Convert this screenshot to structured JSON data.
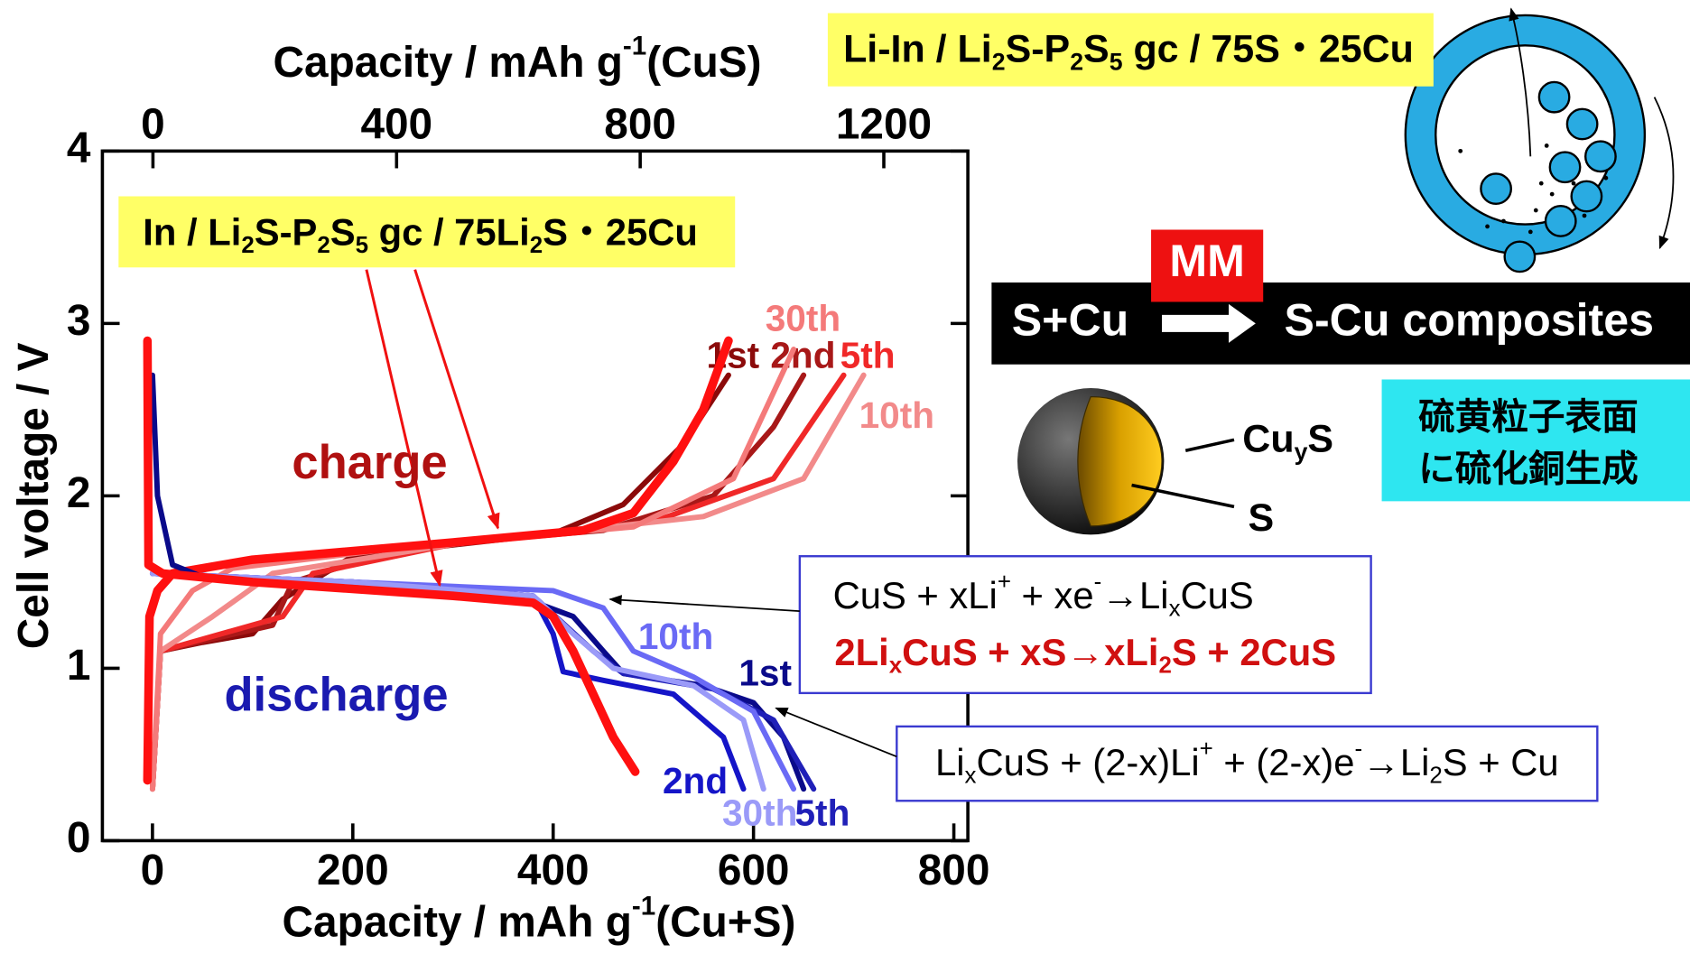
{
  "chart_data": {
    "type": "line",
    "xlabel": [
      "Capacity / mAh g",
      {
        "sup": "-1"
      },
      "(Cu+S)"
    ],
    "x2label": [
      "Capacity / mAh g",
      {
        "sup": "-1"
      },
      "(CuS)"
    ],
    "ylabel": "Cell voltage / V",
    "xlim": [
      -50,
      814
    ],
    "xticks": [
      0,
      200,
      400,
      600,
      800
    ],
    "x2lim": [
      -83,
      1338
    ],
    "x2ticks": [
      0,
      400,
      800,
      1200
    ],
    "ylim": [
      0,
      4
    ],
    "yticks": [
      0,
      1,
      2,
      3,
      4
    ],
    "series": [
      {
        "name": "1st",
        "color": "#8b0a0a",
        "x": [
          0,
          8,
          50,
          100,
          130,
          200,
          400,
          470,
          530,
          575
        ],
        "values": [
          0.3,
          1.1,
          1.15,
          1.2,
          1.4,
          1.65,
          1.78,
          1.95,
          2.3,
          2.7
        ]
      },
      {
        "name": "2nd",
        "color": "#a81818",
        "x": [
          0,
          8,
          120,
          140,
          250,
          450,
          560,
          620,
          650
        ],
        "values": [
          0.3,
          1.1,
          1.25,
          1.5,
          1.7,
          1.8,
          2.0,
          2.4,
          2.7
        ]
      },
      {
        "name": "5th",
        "color": "#f02828",
        "x": [
          0,
          8,
          130,
          160,
          300,
          500,
          620,
          690
        ],
        "values": [
          0.3,
          1.1,
          1.3,
          1.55,
          1.72,
          1.85,
          2.1,
          2.7
        ]
      },
      {
        "name": "10th",
        "color": "#f28a8a",
        "x": [
          0,
          8,
          60,
          120,
          300,
          550,
          650,
          710
        ],
        "values": [
          0.3,
          1.1,
          1.3,
          1.55,
          1.72,
          1.88,
          2.1,
          2.7
        ]
      },
      {
        "name": "30th",
        "color": "#f47a7a",
        "x": [
          0,
          8,
          40,
          80,
          250,
          480,
          580,
          640
        ],
        "values": [
          0.3,
          1.2,
          1.45,
          1.58,
          1.7,
          1.82,
          2.1,
          2.85
        ]
      },
      {
        "color": "#ff1010",
        "x": [
          -5,
          -3,
          5,
          20,
          100,
          300,
          430,
          480,
          520,
          550,
          575
        ],
        "values": [
          0.35,
          1.3,
          1.45,
          1.55,
          1.63,
          1.73,
          1.8,
          1.9,
          2.2,
          2.5,
          2.9
        ]
      },
      {
        "name": "1st",
        "color": "#0a0a8a",
        "x": [
          0,
          5,
          20,
          50,
          200,
          350,
          420,
          450,
          470,
          550,
          600,
          630,
          650
        ],
        "values": [
          2.7,
          2.0,
          1.6,
          1.53,
          1.5,
          1.45,
          1.3,
          1.1,
          0.97,
          0.9,
          0.8,
          0.6,
          0.3
        ]
      },
      {
        "name": "2nd",
        "color": "#1515c8",
        "x": [
          0,
          200,
          380,
          400,
          410,
          450,
          520,
          570,
          590
        ],
        "values": [
          1.55,
          1.5,
          1.42,
          1.2,
          0.98,
          0.93,
          0.85,
          0.6,
          0.3
        ]
      },
      {
        "name": "5th",
        "color": "#2020b8",
        "x": [
          0,
          200,
          380,
          440,
          470,
          560,
          620,
          660
        ],
        "values": [
          1.55,
          1.5,
          1.42,
          1.1,
          0.97,
          0.88,
          0.7,
          0.3
        ]
      },
      {
        "name": "10th",
        "color": "#6a6af5",
        "x": [
          0,
          200,
          400,
          450,
          480,
          540,
          600,
          640
        ],
        "values": [
          1.55,
          1.5,
          1.45,
          1.35,
          1.1,
          0.95,
          0.75,
          0.3
        ]
      },
      {
        "name": "30th",
        "color": "#9a9af8",
        "x": [
          0,
          200,
          380,
          420,
          460,
          540,
          590,
          610
        ],
        "values": [
          1.55,
          1.5,
          1.42,
          1.2,
          1.0,
          0.9,
          0.7,
          0.3
        ]
      },
      {
        "color": "#ff1010",
        "x": [
          -5,
          -4,
          10,
          100,
          300,
          380,
          400,
          420,
          440,
          460,
          482
        ],
        "values": [
          2.9,
          1.6,
          1.55,
          1.5,
          1.42,
          1.38,
          1.3,
          1.1,
          0.85,
          0.6,
          0.4
        ]
      }
    ],
    "annotations": {
      "charge": "charge",
      "discharge": "discharge",
      "cell_top": [
        "Li-In / Li",
        {
          "sub": "2"
        },
        "S-P",
        {
          "sub": "2"
        },
        "S",
        {
          "sub": "5"
        },
        " gc / 75S・25Cu"
      ],
      "cell_inner": [
        "In / Li",
        {
          "sub": "2"
        },
        "S-P",
        {
          "sub": "2"
        },
        "S",
        {
          "sub": "5"
        },
        " gc / 75Li",
        {
          "sub": "2"
        },
        "S・25Cu"
      ],
      "reaction_1": [
        "CuS + xLi",
        {
          "sup": "+"
        },
        " + xe",
        {
          "sup": "-"
        },
        "→Li",
        {
          "sub": "x"
        },
        "CuS"
      ],
      "reaction_2": [
        "2Li",
        {
          "sub": "x"
        },
        "CuS + xS→xLi",
        {
          "sub": "2"
        },
        "S + 2CuS"
      ],
      "reaction_3": [
        "Li",
        {
          "sub": "x"
        },
        "CuS + (2-x)Li",
        {
          "sup": "+"
        },
        " + (2-x)e",
        {
          "sup": "-"
        },
        "→Li",
        {
          "sub": "2"
        },
        "S + Cu"
      ],
      "mm": "MM",
      "reactant": "S+Cu",
      "product": "S-Cu composites",
      "shell": [
        "Cu",
        {
          "sub": "y"
        },
        "S"
      ],
      "core": "S",
      "note": [
        "硫黄粒子表面",
        "に硫化銅生成"
      ]
    }
  }
}
